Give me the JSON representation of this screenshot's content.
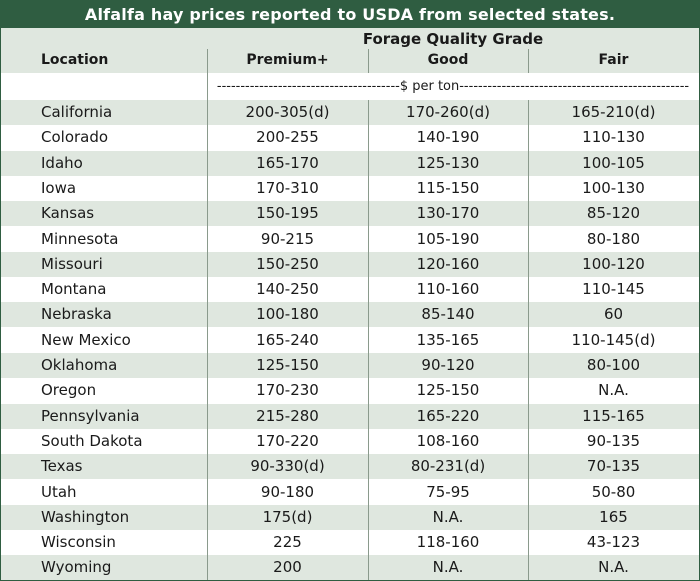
{
  "title": "Alfalfa hay prices reported to USDA from selected states.",
  "group_header": "Forage Quality Grade",
  "columns": [
    "Location",
    "Premium+",
    "Good",
    "Fair"
  ],
  "unit_label": "---------------------------------------$ per ton-------------------------------------------------",
  "rows": [
    [
      "California",
      "200-305(d)",
      "170-260(d)",
      "165-210(d)"
    ],
    [
      "Colorado",
      "200-255",
      "140-190",
      "110-130"
    ],
    [
      "Idaho",
      "165-170",
      "125-130",
      "100-105"
    ],
    [
      "Iowa",
      "170-310",
      "115-150",
      "100-130"
    ],
    [
      "Kansas",
      "150-195",
      "130-170",
      "85-120"
    ],
    [
      "Minnesota",
      "90-215",
      "105-190",
      "80-180"
    ],
    [
      "Missouri",
      "150-250",
      "120-160",
      "100-120"
    ],
    [
      "Montana",
      "140-250",
      "110-160",
      "110-145"
    ],
    [
      "Nebraska",
      "100-180",
      "85-140",
      "60"
    ],
    [
      "New Mexico",
      "165-240",
      "135-165",
      "110-145(d)"
    ],
    [
      "Oklahoma",
      "125-150",
      "90-120",
      "80-100"
    ],
    [
      "Oregon",
      "170-230",
      "125-150",
      "N.A."
    ],
    [
      "Pennsylvania",
      "215-280",
      "165-220",
      "115-165"
    ],
    [
      "South Dakota",
      "170-220",
      "108-160",
      "90-135"
    ],
    [
      "Texas",
      "90-330(d)",
      "80-231(d)",
      "70-135"
    ],
    [
      "Utah",
      "90-180",
      "75-95",
      "50-80"
    ],
    [
      "Washington",
      "175(d)",
      "N.A.",
      "165"
    ],
    [
      "Wisconsin",
      "225",
      "118-160",
      "43-123"
    ],
    [
      "Wyoming",
      "200",
      "N.A.",
      "N.A."
    ]
  ],
  "colors": {
    "title_bg": "#2f5d41",
    "shade": "#dfe7df",
    "rule": "#8a9a8c"
  }
}
